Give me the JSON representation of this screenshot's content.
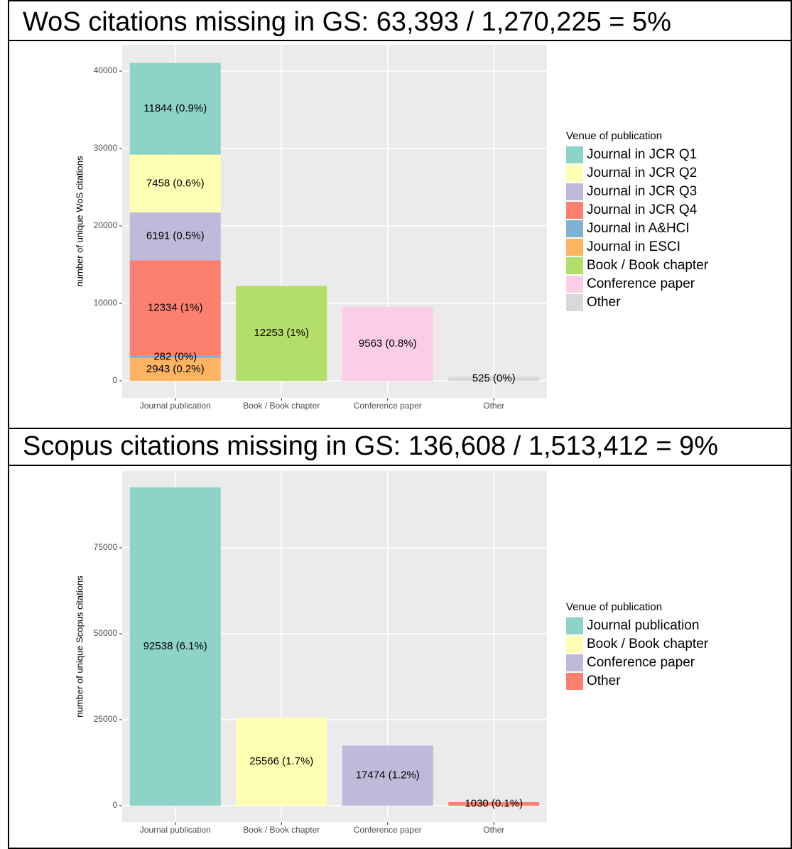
{
  "chart_data": [
    {
      "type": "stacked-bar",
      "title": "WoS citations missing in GS: 63,393 / 1,270,225 = 5%",
      "y_label": "number of unique WoS citations",
      "legend_title": "Venue of publication",
      "legend": "right",
      "grid": true,
      "categories": [
        "Journal publication",
        "Book / Book chapter",
        "Conference paper",
        "Other"
      ],
      "ylim": [
        -2200,
        43400
      ],
      "yticks": [
        0,
        10000,
        20000,
        30000,
        40000
      ],
      "series": [
        {
          "name": "Journal in JCR Q1",
          "color": "#8dd3c7",
          "values": [
            11844,
            null,
            null,
            null
          ],
          "value_labels": [
            "11844 (0.9%)",
            null,
            null,
            null
          ]
        },
        {
          "name": "Journal in JCR Q2",
          "color": "#ffffb3",
          "values": [
            7458,
            null,
            null,
            null
          ],
          "value_labels": [
            "7458 (0.6%)",
            null,
            null,
            null
          ]
        },
        {
          "name": "Journal in JCR Q3",
          "color": "#bebada",
          "values": [
            6191,
            null,
            null,
            null
          ],
          "value_labels": [
            "6191 (0.5%)",
            null,
            null,
            null
          ]
        },
        {
          "name": "Journal in JCR Q4",
          "color": "#fb8072",
          "values": [
            12334,
            null,
            null,
            null
          ],
          "value_labels": [
            "12334 (1%)",
            null,
            null,
            null
          ]
        },
        {
          "name": "Journal in A&HCI",
          "color": "#80b1d3",
          "values": [
            282,
            null,
            null,
            null
          ],
          "value_labels": [
            "282 (0%)",
            null,
            null,
            null
          ]
        },
        {
          "name": "Journal in ESCI",
          "color": "#fdb462",
          "values": [
            2943,
            null,
            null,
            null
          ],
          "value_labels": [
            "2943 (0.2%)",
            null,
            null,
            null
          ]
        },
        {
          "name": "Book / Book chapter",
          "color": "#b3de69",
          "values": [
            null,
            12253,
            null,
            null
          ],
          "value_labels": [
            null,
            "12253 (1%)",
            null,
            null
          ]
        },
        {
          "name": "Conference paper",
          "color": "#fccde5",
          "values": [
            null,
            null,
            9563,
            null
          ],
          "value_labels": [
            null,
            null,
            "9563 (0.8%)",
            null
          ]
        },
        {
          "name": "Other",
          "color": "#d9d9d9",
          "values": [
            null,
            null,
            null,
            525
          ],
          "value_labels": [
            null,
            null,
            null,
            "525 (0%)"
          ]
        }
      ]
    },
    {
      "type": "stacked-bar",
      "title": "Scopus citations missing in GS: 136,608 / 1,513,412 = 9%",
      "y_label": "number of unique Scopus citations",
      "legend_title": "Venue of publication",
      "legend": "right",
      "grid": true,
      "categories": [
        "Journal publication",
        "Book / Book chapter",
        "Conference paper",
        "Other"
      ],
      "ylim": [
        -4750,
        97300
      ],
      "yticks": [
        0,
        25000,
        50000,
        75000
      ],
      "series": [
        {
          "name": "Journal publication",
          "color": "#8dd3c7",
          "values": [
            92538,
            null,
            null,
            null
          ],
          "value_labels": [
            "92538 (6.1%)",
            null,
            null,
            null
          ]
        },
        {
          "name": "Book / Book chapter",
          "color": "#ffffb3",
          "values": [
            null,
            25566,
            null,
            null
          ],
          "value_labels": [
            null,
            "25566 (1.7%)",
            null,
            null
          ]
        },
        {
          "name": "Conference paper",
          "color": "#bebada",
          "values": [
            null,
            null,
            17474,
            null
          ],
          "value_labels": [
            null,
            null,
            "17474 (1.2%)",
            null
          ]
        },
        {
          "name": "Other",
          "color": "#fb8072",
          "values": [
            null,
            null,
            null,
            1030
          ],
          "value_labels": [
            null,
            null,
            null,
            "1030 (0.1%)"
          ]
        }
      ]
    }
  ]
}
